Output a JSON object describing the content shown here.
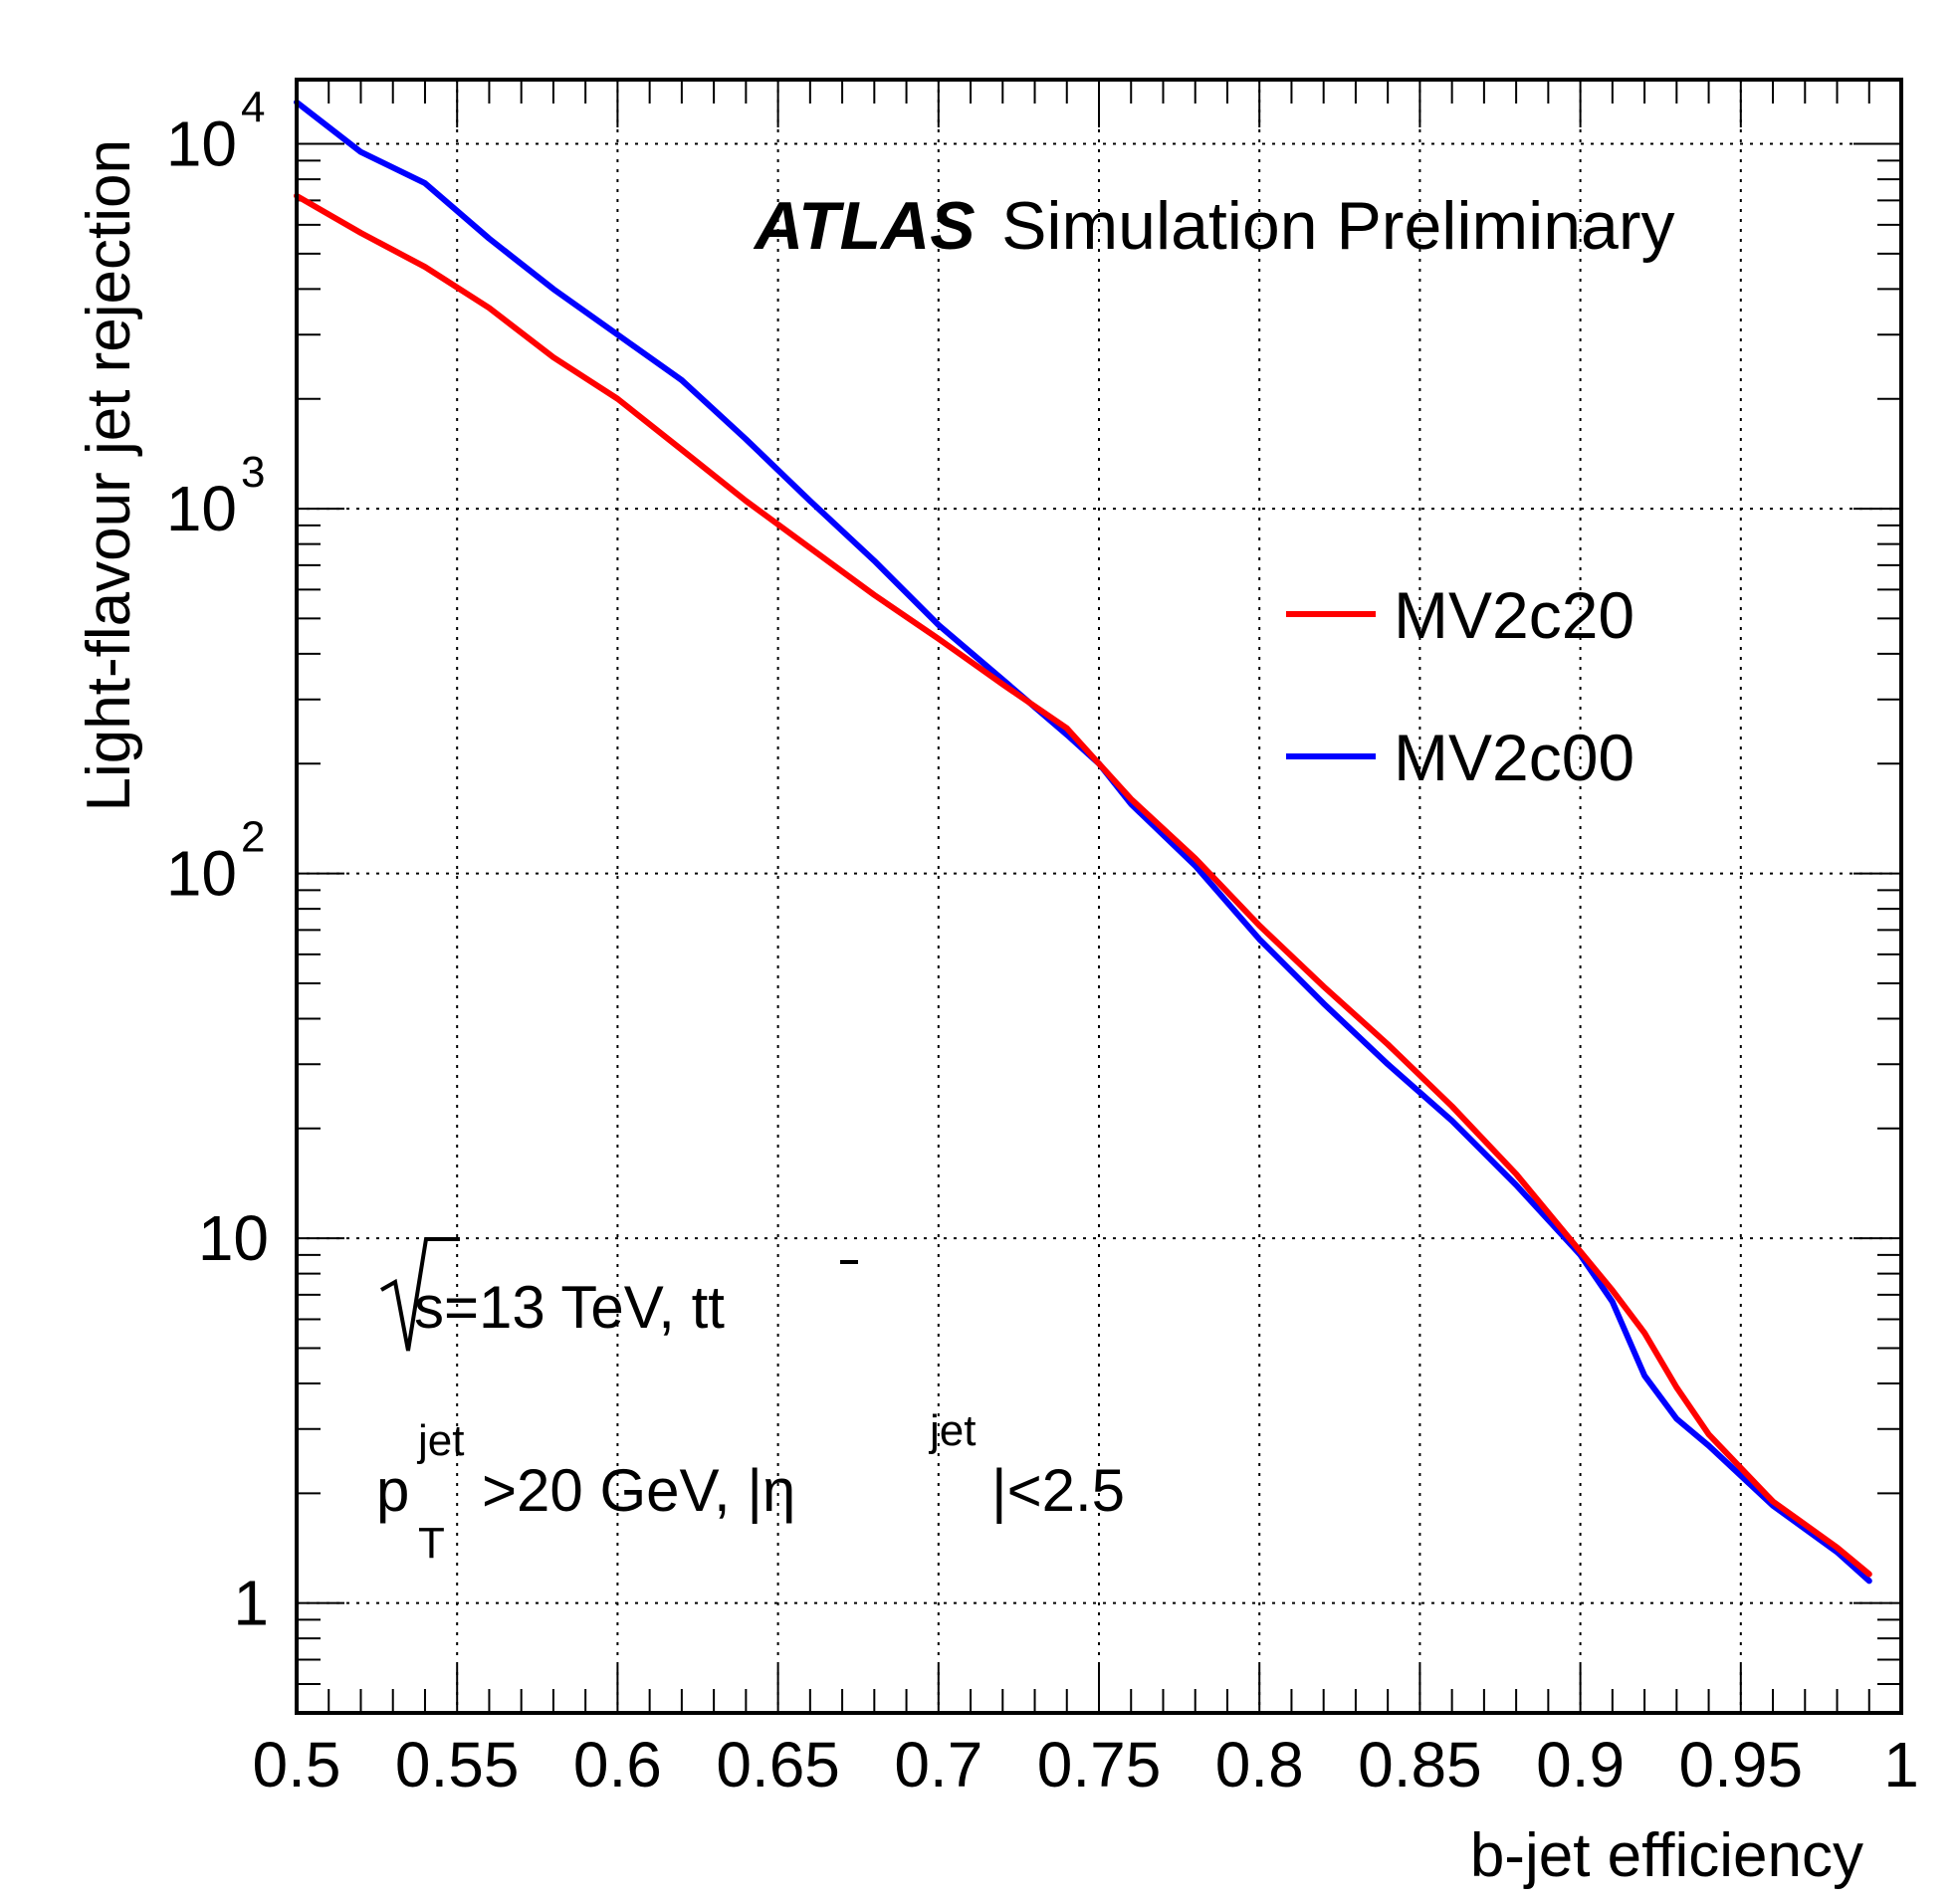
{
  "chart_data": {
    "type": "line",
    "xlabel": "b-jet efficiency",
    "ylabel": "Light-flavour jet rejection",
    "xlim": [
      0.5,
      1.0
    ],
    "ylim": [
      0.5,
      15000
    ],
    "yscale": "log",
    "grid": true,
    "legend_placement": "right",
    "x_ticks": [
      "0.5",
      "0.55",
      "0.6",
      "0.65",
      "0.7",
      "0.75",
      "0.8",
      "0.85",
      "0.9",
      "0.95",
      "1"
    ],
    "y_ticks": [
      {
        "value": 1,
        "base": "1",
        "exp": ""
      },
      {
        "value": 10,
        "base": "10",
        "exp": ""
      },
      {
        "value": 100,
        "base": "10",
        "exp": "2"
      },
      {
        "value": 1000,
        "base": "10",
        "exp": "3"
      },
      {
        "value": 10000,
        "base": "10",
        "exp": "4"
      }
    ],
    "series": [
      {
        "name": "MV2c20",
        "color": "#ff0000",
        "x": [
          0.5,
          0.52,
          0.54,
          0.56,
          0.58,
          0.6,
          0.62,
          0.64,
          0.66,
          0.68,
          0.7,
          0.72,
          0.74,
          0.75,
          0.76,
          0.78,
          0.8,
          0.82,
          0.84,
          0.86,
          0.88,
          0.9,
          0.91,
          0.92,
          0.93,
          0.94,
          0.96,
          0.98,
          0.99
        ],
        "y": [
          7200,
          5700,
          4600,
          3550,
          2600,
          2000,
          1450,
          1050,
          780,
          580,
          440,
          330,
          250,
          200,
          160,
          110,
          72,
          49,
          34,
          23,
          15,
          9.2,
          7.2,
          5.5,
          3.9,
          2.9,
          1.9,
          1.42,
          1.2
        ]
      },
      {
        "name": "MV2c00",
        "color": "#0000ff",
        "x": [
          0.5,
          0.52,
          0.54,
          0.56,
          0.58,
          0.6,
          0.62,
          0.64,
          0.66,
          0.68,
          0.7,
          0.72,
          0.74,
          0.75,
          0.76,
          0.78,
          0.8,
          0.82,
          0.84,
          0.86,
          0.88,
          0.9,
          0.91,
          0.92,
          0.93,
          0.94,
          0.96,
          0.98,
          0.99
        ],
        "y": [
          13000,
          9500,
          7800,
          5500,
          4000,
          3000,
          2250,
          1550,
          1050,
          720,
          480,
          340,
          240,
          200,
          155,
          105,
          66,
          44,
          30,
          21,
          14,
          9.0,
          6.7,
          4.2,
          3.2,
          2.7,
          1.85,
          1.38,
          1.15
        ]
      }
    ],
    "annotations": {
      "atlas": "ATLAS",
      "atlas_rest": "Simulation Preliminary",
      "energy": "s=13 TeV, tt",
      "cuts_p": "p",
      "cuts_p_sup": "jet",
      "cuts_p_sub": "T",
      "cuts_mid": ">20 GeV, |η",
      "cuts_eta_sup": "jet",
      "cuts_end": "|<2.5"
    }
  }
}
